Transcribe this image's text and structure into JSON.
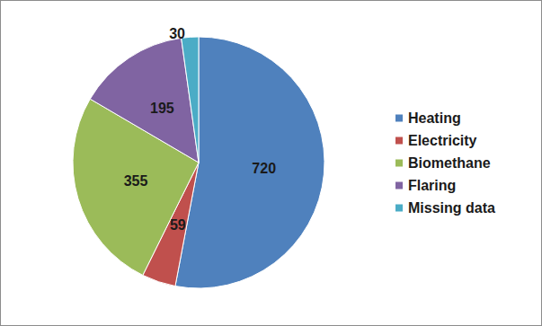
{
  "chart_data": {
    "type": "pie",
    "categories": [
      "Heating",
      "Electricity",
      "Biomethane",
      "Flaring",
      "Missing data"
    ],
    "values": [
      720,
      59,
      355,
      195,
      30
    ],
    "colors": [
      "#4f81bd",
      "#c0504d",
      "#9bbb59",
      "#8064a2",
      "#4bacc6"
    ],
    "data_labels": true,
    "legend": "right"
  }
}
